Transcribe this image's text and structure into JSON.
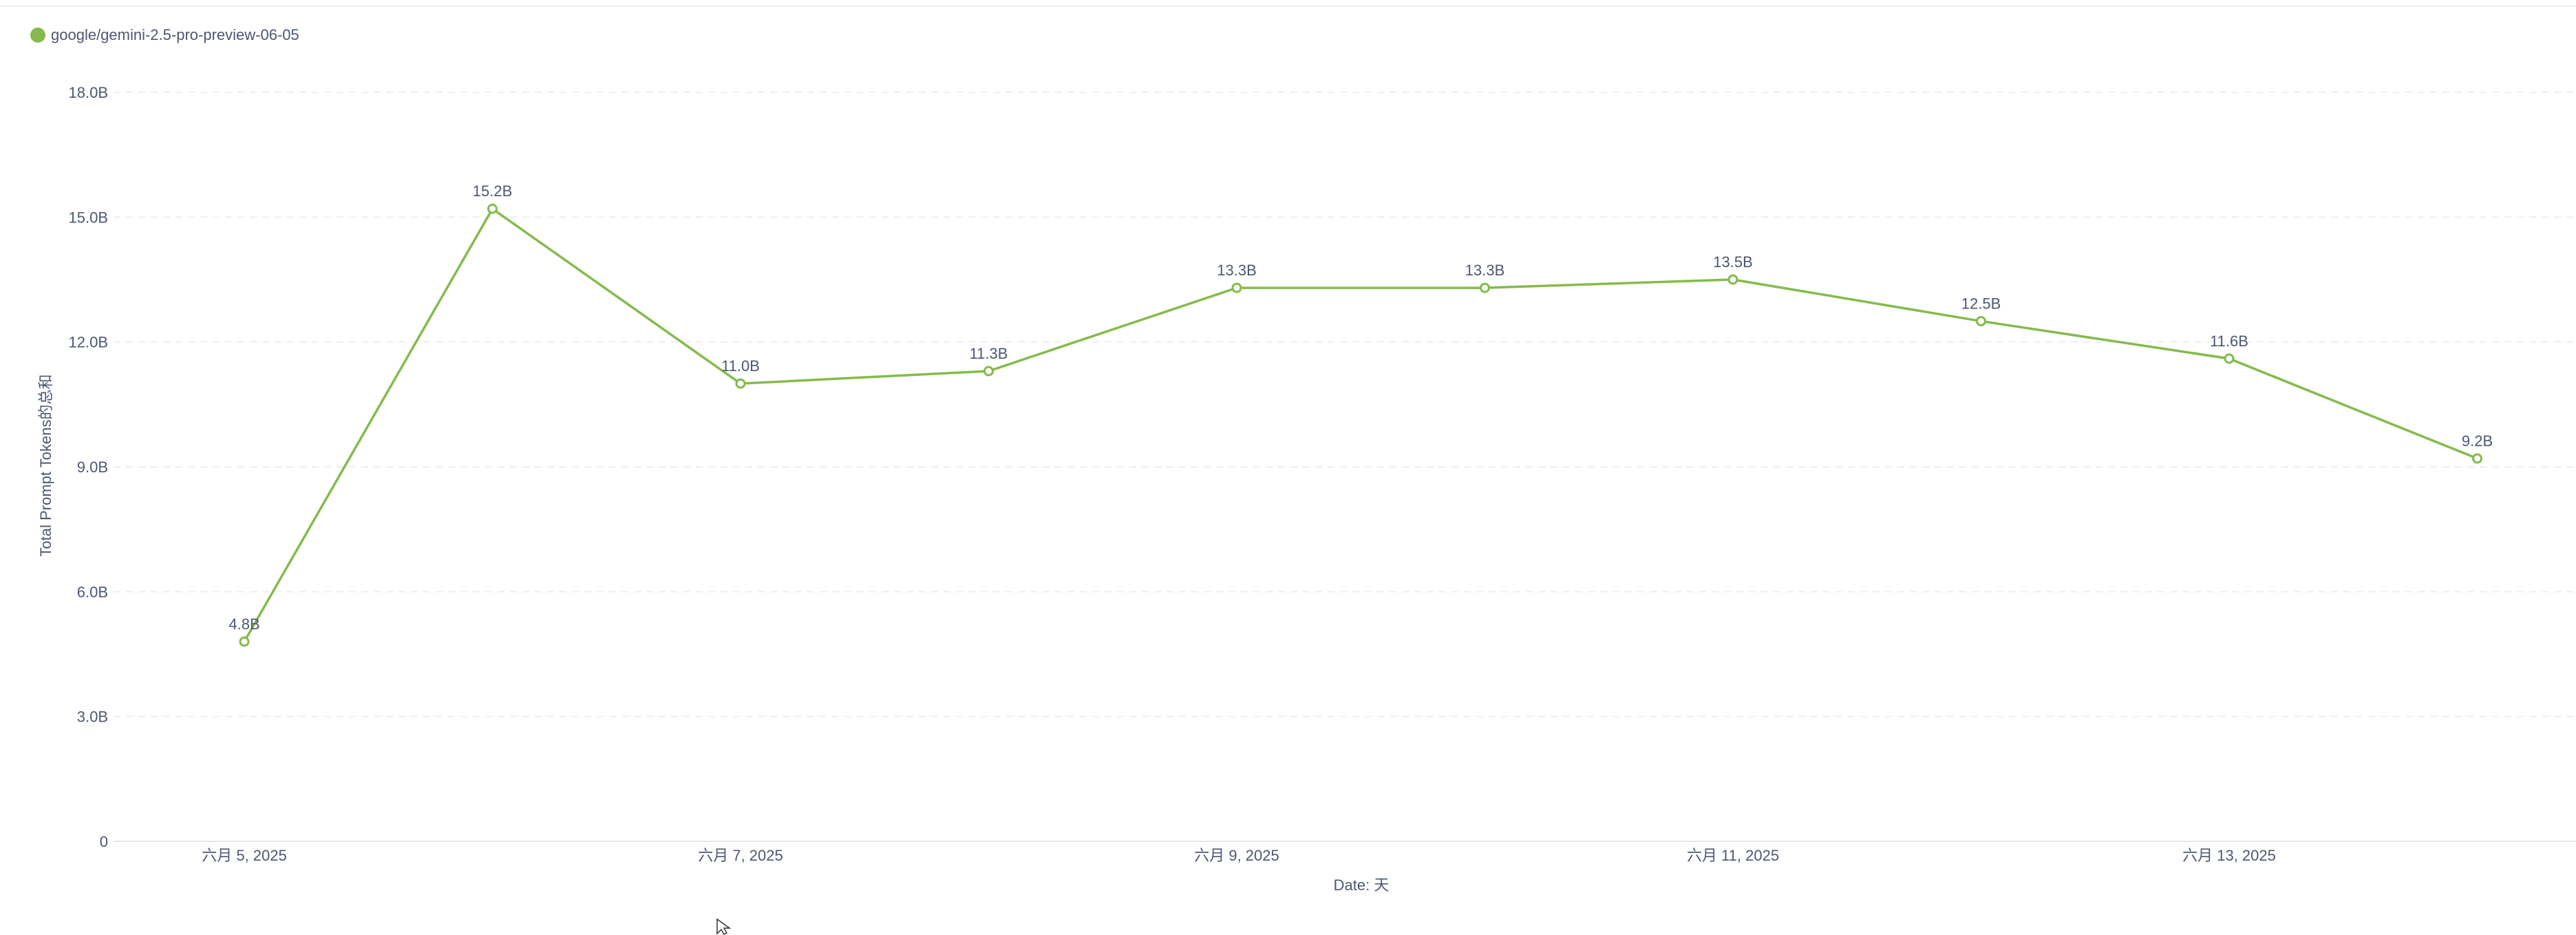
{
  "chart_data": {
    "type": "line",
    "legend": {
      "placement": "top-left"
    },
    "series": [
      {
        "name": "google/gemini-2.5-pro-preview-06-05",
        "color": "#84bb4c",
        "x": [
          "2025-06-05",
          "2025-06-06",
          "2025-06-07",
          "2025-06-08",
          "2025-06-09",
          "2025-06-10",
          "2025-06-11",
          "2025-06-12",
          "2025-06-13",
          "2025-06-14"
        ],
        "values": [
          4.8,
          15.2,
          11.0,
          11.3,
          13.3,
          13.3,
          13.5,
          12.5,
          11.6,
          9.2
        ],
        "labels": [
          "4.8B",
          "15.2B",
          "11.0B",
          "11.3B",
          "13.3B",
          "13.3B",
          "13.5B",
          "12.5B",
          "11.6B",
          "9.2B"
        ]
      }
    ],
    "xticks": [
      "六月 5, 2025",
      "六月 7, 2025",
      "六月 9, 2025",
      "六月 11, 2025",
      "六月 13, 2025"
    ],
    "yticks": [
      "0",
      "3.0B",
      "6.0B",
      "9.0B",
      "12.0B",
      "15.0B",
      "18.0B"
    ],
    "ylim": [
      0,
      18
    ],
    "xlabel": "Date: 天",
    "ylabel": "Total Prompt Tokens的总和",
    "grid": true
  }
}
